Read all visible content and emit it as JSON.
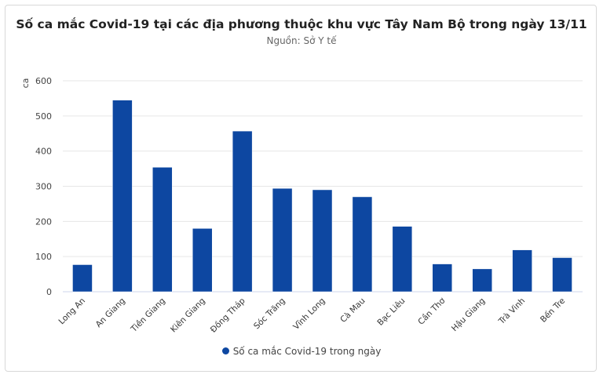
{
  "chart_data": {
    "type": "bar",
    "title": "Số ca mắc Covid-19 tại các địa phương thuộc khu vực Tây Nam Bộ trong ngày 13/11",
    "subtitle": "Nguồn: Sở Y tế",
    "ylabel": "ca",
    "xlabel": "",
    "ylim": [
      0,
      600
    ],
    "yticks": [
      "0",
      "100",
      "200",
      "300",
      "400",
      "500",
      "600"
    ],
    "grid": true,
    "legend_position": "bottom",
    "categories": [
      "Long An",
      "An Giang",
      "Tiền Giang",
      "Kiên Giang",
      "Đồng Tháp",
      "Sóc Trăng",
      "Vĩnh Long",
      "Cà Mau",
      "Bạc Liêu",
      "Cần Thơ",
      "Hậu Giang",
      "Trà Vinh",
      "Bến Tre"
    ],
    "series": [
      {
        "name": "Số ca mắc Covid-19 trong ngày",
        "color": "#0d47a1",
        "values": [
          77,
          545,
          354,
          180,
          457,
          294,
          290,
          270,
          186,
          79,
          65,
          119,
          97
        ]
      }
    ]
  }
}
